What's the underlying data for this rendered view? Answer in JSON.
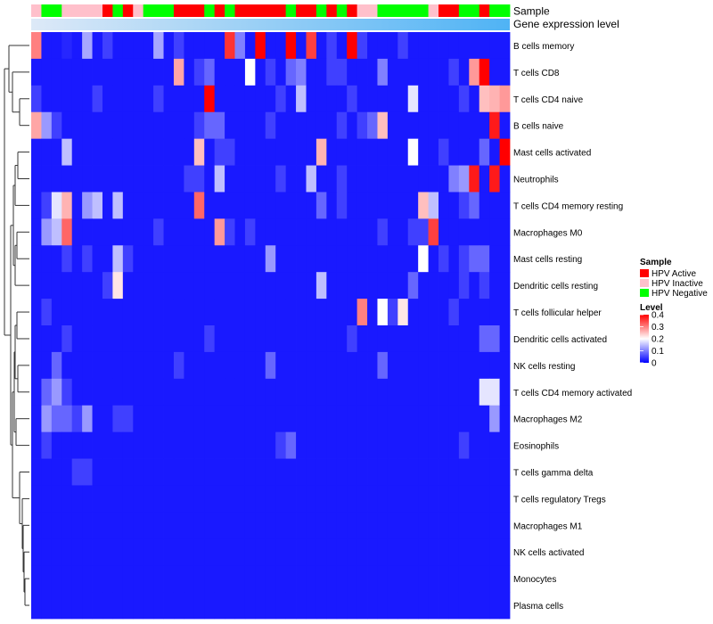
{
  "chart_data": {
    "type": "heatmap",
    "annotation_title": "Sample",
    "bar_title": "Gene expression level",
    "legend_sample_title": "Sample",
    "legend_level_title": "Level",
    "sample_categories": [
      {
        "name": "HPV Active",
        "color": "#ff0000"
      },
      {
        "name": "HPV Inactive",
        "color": "#ffc0cb"
      },
      {
        "name": "HPV Negative",
        "color": "#00ff00"
      }
    ],
    "scale_colors": {
      "low": "#0000ff",
      "mid": "#ffffff",
      "high": "#ff0000"
    },
    "scale_domain": [
      0,
      0.2,
      0.4
    ],
    "scale_ticks": [
      0,
      0.1,
      0.2,
      0.3,
      0.4
    ],
    "scale_tick_labels": [
      "0",
      "0.1",
      "0.2",
      "0.3",
      "0.4"
    ],
    "sample_groups": [
      1,
      2,
      2,
      1,
      1,
      1,
      1,
      0,
      2,
      0,
      1,
      2,
      2,
      2,
      0,
      0,
      0,
      2,
      0,
      2,
      0,
      0,
      0,
      0,
      0,
      2,
      0,
      0,
      2,
      0,
      2,
      0,
      1,
      1,
      2,
      2,
      2,
      2,
      2,
      1,
      0,
      0,
      2,
      2,
      0,
      2,
      2
    ],
    "rows": [
      "B cells memory",
      "T cells CD8",
      "T cells CD4 naive",
      "B cells naive",
      "Mast cells activated",
      "Neutrophils",
      "T cells CD4 memory resting",
      "Macrophages M0",
      "Mast cells resting",
      "Dendritic cells resting",
      "T cells follicular helper",
      "Dendritic cells activated",
      "NK cells resting",
      "T cells CD4 memory activated",
      "Macrophages M2",
      "Eosinophils",
      "T cells gamma delta",
      "T cells regulatory  Tregs",
      "Macrophages M1",
      "NK cells activated",
      "Monocytes",
      "Plasma cells"
    ],
    "values": [
      [
        0.3,
        0.02,
        0.02,
        0.03,
        0.02,
        0.13,
        0.02,
        0.05,
        0.02,
        0.02,
        0.02,
        0.02,
        0.13,
        0.02,
        0.05,
        0.02,
        0.02,
        0.02,
        0.02,
        0.36,
        0.1,
        0.02,
        0.4,
        0.02,
        0.02,
        0.4,
        0.02,
        0.35,
        0.02,
        0.05,
        0.02,
        0.4,
        0.05,
        0.02,
        0.02,
        0.02,
        0.05,
        0.02,
        0.02,
        0.02,
        0.02,
        0.02,
        0.02,
        0.02,
        0.02,
        0.02,
        0.02
      ],
      [
        0.02,
        0.02,
        0.02,
        0.02,
        0.02,
        0.02,
        0.02,
        0.02,
        0.02,
        0.02,
        0.02,
        0.02,
        0.02,
        0.02,
        0.27,
        0.02,
        0.05,
        0.08,
        0.02,
        0.02,
        0.02,
        0.2,
        0.02,
        0.05,
        0.02,
        0.08,
        0.1,
        0.02,
        0.02,
        0.05,
        0.05,
        0.02,
        0.02,
        0.02,
        0.1,
        0.02,
        0.02,
        0.02,
        0.02,
        0.02,
        0.02,
        0.05,
        0.02,
        0.28,
        0.4,
        0.02,
        0.02
      ],
      [
        0.05,
        0.02,
        0.02,
        0.02,
        0.02,
        0.02,
        0.05,
        0.02,
        0.02,
        0.02,
        0.02,
        0.02,
        0.05,
        0.02,
        0.02,
        0.02,
        0.02,
        0.4,
        0.02,
        0.02,
        0.02,
        0.02,
        0.02,
        0.02,
        0.05,
        0.02,
        0.15,
        0.02,
        0.02,
        0.02,
        0.02,
        0.05,
        0.02,
        0.02,
        0.02,
        0.02,
        0.02,
        0.18,
        0.02,
        0.02,
        0.02,
        0.02,
        0.05,
        0.02,
        0.25,
        0.26,
        0.28
      ],
      [
        0.27,
        0.12,
        0.05,
        0.02,
        0.02,
        0.02,
        0.02,
        0.02,
        0.02,
        0.02,
        0.02,
        0.02,
        0.02,
        0.02,
        0.02,
        0.02,
        0.05,
        0.08,
        0.08,
        0.02,
        0.02,
        0.02,
        0.02,
        0.05,
        0.02,
        0.02,
        0.02,
        0.02,
        0.02,
        0.02,
        0.05,
        0.02,
        0.05,
        0.08,
        0.25,
        0.02,
        0.02,
        0.02,
        0.02,
        0.02,
        0.02,
        0.02,
        0.02,
        0.02,
        0.02,
        0.38,
        0.02
      ],
      [
        0.02,
        0.02,
        0.02,
        0.15,
        0.02,
        0.02,
        0.02,
        0.02,
        0.02,
        0.02,
        0.02,
        0.02,
        0.02,
        0.02,
        0.02,
        0.02,
        0.25,
        0.02,
        0.05,
        0.05,
        0.02,
        0.02,
        0.02,
        0.02,
        0.02,
        0.02,
        0.02,
        0.02,
        0.26,
        0.02,
        0.02,
        0.02,
        0.02,
        0.02,
        0.02,
        0.02,
        0.02,
        0.2,
        0.02,
        0.02,
        0.05,
        0.02,
        0.02,
        0.02,
        0.08,
        0.02,
        0.4
      ],
      [
        0.02,
        0.02,
        0.02,
        0.02,
        0.02,
        0.02,
        0.02,
        0.02,
        0.02,
        0.02,
        0.02,
        0.02,
        0.02,
        0.02,
        0.02,
        0.05,
        0.05,
        0.02,
        0.15,
        0.02,
        0.02,
        0.02,
        0.02,
        0.02,
        0.05,
        0.02,
        0.02,
        0.15,
        0.02,
        0.02,
        0.05,
        0.02,
        0.02,
        0.02,
        0.02,
        0.02,
        0.02,
        0.02,
        0.02,
        0.02,
        0.02,
        0.1,
        0.12,
        0.38,
        0.02,
        0.38,
        0.02
      ],
      [
        0.02,
        0.05,
        0.18,
        0.26,
        0.02,
        0.12,
        0.15,
        0.02,
        0.15,
        0.02,
        0.02,
        0.02,
        0.02,
        0.02,
        0.02,
        0.02,
        0.32,
        0.02,
        0.02,
        0.02,
        0.02,
        0.02,
        0.02,
        0.02,
        0.02,
        0.02,
        0.02,
        0.02,
        0.08,
        0.02,
        0.05,
        0.02,
        0.02,
        0.02,
        0.02,
        0.02,
        0.02,
        0.02,
        0.25,
        0.15,
        0.02,
        0.02,
        0.05,
        0.08,
        0.02,
        0.02,
        0.02
      ],
      [
        0.02,
        0.12,
        0.15,
        0.32,
        0.02,
        0.02,
        0.02,
        0.02,
        0.02,
        0.02,
        0.02,
        0.02,
        0.05,
        0.02,
        0.02,
        0.02,
        0.02,
        0.02,
        0.28,
        0.05,
        0.02,
        0.05,
        0.02,
        0.02,
        0.02,
        0.02,
        0.02,
        0.02,
        0.02,
        0.02,
        0.02,
        0.02,
        0.02,
        0.02,
        0.05,
        0.02,
        0.02,
        0.05,
        0.05,
        0.35,
        0.02,
        0.02,
        0.02,
        0.02,
        0.02,
        0.02,
        0.02
      ],
      [
        0.02,
        0.02,
        0.02,
        0.05,
        0.02,
        0.05,
        0.02,
        0.02,
        0.15,
        0.05,
        0.02,
        0.02,
        0.02,
        0.02,
        0.02,
        0.02,
        0.02,
        0.02,
        0.02,
        0.02,
        0.02,
        0.02,
        0.02,
        0.12,
        0.02,
        0.02,
        0.02,
        0.02,
        0.02,
        0.02,
        0.02,
        0.02,
        0.02,
        0.02,
        0.02,
        0.02,
        0.02,
        0.02,
        0.2,
        0.02,
        0.05,
        0.02,
        0.05,
        0.08,
        0.08,
        0.02,
        0.02
      ],
      [
        0.02,
        0.02,
        0.02,
        0.02,
        0.02,
        0.02,
        0.02,
        0.05,
        0.22,
        0.02,
        0.02,
        0.02,
        0.02,
        0.02,
        0.02,
        0.02,
        0.02,
        0.02,
        0.02,
        0.02,
        0.02,
        0.02,
        0.02,
        0.02,
        0.02,
        0.02,
        0.02,
        0.02,
        0.15,
        0.02,
        0.02,
        0.02,
        0.02,
        0.02,
        0.02,
        0.02,
        0.02,
        0.08,
        0.02,
        0.02,
        0.02,
        0.02,
        0.05,
        0.02,
        0.05,
        0.02,
        0.02
      ],
      [
        0.02,
        0.05,
        0.02,
        0.02,
        0.02,
        0.02,
        0.02,
        0.02,
        0.02,
        0.02,
        0.02,
        0.02,
        0.02,
        0.02,
        0.02,
        0.02,
        0.02,
        0.02,
        0.02,
        0.02,
        0.02,
        0.02,
        0.02,
        0.02,
        0.02,
        0.02,
        0.02,
        0.02,
        0.02,
        0.02,
        0.02,
        0.02,
        0.3,
        0.02,
        0.2,
        0.05,
        0.22,
        0.02,
        0.02,
        0.02,
        0.02,
        0.05,
        0.02,
        0.02,
        0.02,
        0.02,
        0.02
      ],
      [
        0.02,
        0.02,
        0.02,
        0.05,
        0.02,
        0.02,
        0.02,
        0.02,
        0.02,
        0.02,
        0.02,
        0.02,
        0.02,
        0.02,
        0.02,
        0.02,
        0.02,
        0.05,
        0.02,
        0.02,
        0.02,
        0.02,
        0.02,
        0.02,
        0.02,
        0.02,
        0.02,
        0.02,
        0.02,
        0.02,
        0.02,
        0.05,
        0.02,
        0.02,
        0.02,
        0.02,
        0.02,
        0.02,
        0.02,
        0.02,
        0.02,
        0.02,
        0.02,
        0.02,
        0.08,
        0.08,
        0.02
      ],
      [
        0.02,
        0.02,
        0.08,
        0.02,
        0.02,
        0.02,
        0.02,
        0.02,
        0.02,
        0.02,
        0.02,
        0.02,
        0.02,
        0.02,
        0.05,
        0.02,
        0.02,
        0.02,
        0.02,
        0.02,
        0.02,
        0.02,
        0.02,
        0.08,
        0.02,
        0.02,
        0.02,
        0.02,
        0.02,
        0.02,
        0.02,
        0.02,
        0.02,
        0.02,
        0.08,
        0.02,
        0.02,
        0.02,
        0.02,
        0.02,
        0.02,
        0.02,
        0.02,
        0.02,
        0.02,
        0.02,
        0.02
      ],
      [
        0.02,
        0.08,
        0.12,
        0.05,
        0.02,
        0.02,
        0.02,
        0.02,
        0.02,
        0.02,
        0.02,
        0.02,
        0.02,
        0.02,
        0.02,
        0.02,
        0.02,
        0.02,
        0.02,
        0.02,
        0.02,
        0.02,
        0.02,
        0.02,
        0.02,
        0.02,
        0.02,
        0.02,
        0.02,
        0.02,
        0.02,
        0.02,
        0.02,
        0.02,
        0.02,
        0.02,
        0.02,
        0.02,
        0.02,
        0.02,
        0.02,
        0.02,
        0.02,
        0.02,
        0.18,
        0.18,
        0.02
      ],
      [
        0.02,
        0.12,
        0.08,
        0.08,
        0.05,
        0.12,
        0.02,
        0.02,
        0.05,
        0.05,
        0.02,
        0.02,
        0.02,
        0.02,
        0.02,
        0.02,
        0.02,
        0.02,
        0.02,
        0.02,
        0.02,
        0.02,
        0.02,
        0.02,
        0.02,
        0.02,
        0.02,
        0.02,
        0.02,
        0.02,
        0.02,
        0.02,
        0.02,
        0.02,
        0.02,
        0.02,
        0.02,
        0.02,
        0.02,
        0.02,
        0.02,
        0.02,
        0.02,
        0.02,
        0.02,
        0.12,
        0.02
      ],
      [
        0.02,
        0.05,
        0.02,
        0.02,
        0.02,
        0.02,
        0.02,
        0.02,
        0.02,
        0.02,
        0.02,
        0.02,
        0.02,
        0.02,
        0.02,
        0.02,
        0.02,
        0.02,
        0.02,
        0.02,
        0.02,
        0.02,
        0.02,
        0.02,
        0.05,
        0.08,
        0.02,
        0.02,
        0.02,
        0.02,
        0.02,
        0.02,
        0.02,
        0.02,
        0.02,
        0.02,
        0.02,
        0.02,
        0.02,
        0.02,
        0.02,
        0.02,
        0.05,
        0.02,
        0.02,
        0.02,
        0.02
      ],
      [
        0.02,
        0.02,
        0.02,
        0.02,
        0.05,
        0.05,
        0.02,
        0.02,
        0.02,
        0.02,
        0.02,
        0.02,
        0.02,
        0.02,
        0.02,
        0.02,
        0.02,
        0.02,
        0.02,
        0.02,
        0.02,
        0.02,
        0.02,
        0.02,
        0.02,
        0.02,
        0.02,
        0.02,
        0.02,
        0.02,
        0.02,
        0.02,
        0.02,
        0.02,
        0.02,
        0.02,
        0.02,
        0.02,
        0.02,
        0.02,
        0.02,
        0.02,
        0.02,
        0.02,
        0.02,
        0.02,
        0.02
      ],
      [
        0.02,
        0.02,
        0.02,
        0.02,
        0.02,
        0.02,
        0.02,
        0.02,
        0.02,
        0.02,
        0.02,
        0.02,
        0.02,
        0.02,
        0.02,
        0.02,
        0.02,
        0.02,
        0.02,
        0.02,
        0.02,
        0.02,
        0.02,
        0.02,
        0.02,
        0.02,
        0.02,
        0.02,
        0.02,
        0.02,
        0.02,
        0.02,
        0.02,
        0.02,
        0.02,
        0.02,
        0.02,
        0.02,
        0.02,
        0.02,
        0.02,
        0.02,
        0.02,
        0.02,
        0.02,
        0.02,
        0.02
      ],
      [
        0.02,
        0.02,
        0.02,
        0.02,
        0.02,
        0.02,
        0.02,
        0.02,
        0.02,
        0.02,
        0.02,
        0.02,
        0.02,
        0.02,
        0.02,
        0.02,
        0.02,
        0.02,
        0.02,
        0.02,
        0.02,
        0.02,
        0.02,
        0.02,
        0.02,
        0.02,
        0.02,
        0.02,
        0.02,
        0.02,
        0.02,
        0.02,
        0.02,
        0.02,
        0.02,
        0.02,
        0.02,
        0.02,
        0.02,
        0.02,
        0.02,
        0.02,
        0.02,
        0.02,
        0.02,
        0.02,
        0.02
      ],
      [
        0.02,
        0.02,
        0.02,
        0.02,
        0.02,
        0.02,
        0.02,
        0.02,
        0.02,
        0.02,
        0.02,
        0.02,
        0.02,
        0.02,
        0.02,
        0.02,
        0.02,
        0.02,
        0.02,
        0.02,
        0.02,
        0.02,
        0.02,
        0.02,
        0.02,
        0.02,
        0.02,
        0.02,
        0.02,
        0.02,
        0.02,
        0.02,
        0.02,
        0.02,
        0.02,
        0.02,
        0.02,
        0.02,
        0.02,
        0.02,
        0.02,
        0.02,
        0.02,
        0.02,
        0.02,
        0.02,
        0.02
      ],
      [
        0.02,
        0.02,
        0.02,
        0.02,
        0.02,
        0.02,
        0.02,
        0.02,
        0.02,
        0.02,
        0.02,
        0.02,
        0.02,
        0.02,
        0.02,
        0.02,
        0.02,
        0.02,
        0.02,
        0.02,
        0.02,
        0.02,
        0.02,
        0.02,
        0.02,
        0.02,
        0.02,
        0.02,
        0.02,
        0.02,
        0.02,
        0.02,
        0.02,
        0.02,
        0.02,
        0.02,
        0.02,
        0.02,
        0.02,
        0.02,
        0.02,
        0.02,
        0.02,
        0.02,
        0.02,
        0.02,
        0.02
      ],
      [
        0.02,
        0.02,
        0.02,
        0.02,
        0.02,
        0.02,
        0.02,
        0.02,
        0.02,
        0.02,
        0.02,
        0.02,
        0.02,
        0.02,
        0.02,
        0.02,
        0.02,
        0.02,
        0.02,
        0.02,
        0.02,
        0.02,
        0.02,
        0.02,
        0.02,
        0.02,
        0.02,
        0.02,
        0.02,
        0.02,
        0.02,
        0.02,
        0.02,
        0.02,
        0.02,
        0.02,
        0.02,
        0.02,
        0.02,
        0.02,
        0.02,
        0.02,
        0.02,
        0.02,
        0.02,
        0.02,
        0.02
      ]
    ]
  }
}
